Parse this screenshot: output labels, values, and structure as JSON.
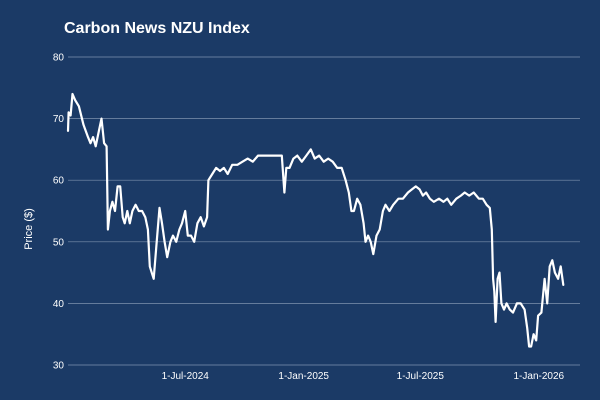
{
  "colors": {
    "background": "#1b3a66",
    "line": "#ffffff",
    "grid": "#9fb0c8",
    "text": "#ffffff"
  },
  "chart_data": {
    "type": "line",
    "title": "Carbon News NZU Index",
    "xlabel": "",
    "ylabel": "Price ($)",
    "ylim": [
      30,
      80
    ],
    "y_ticks": [
      30,
      40,
      50,
      60,
      70,
      80
    ],
    "y_tick_labels": [
      "30",
      "40",
      "50",
      "60",
      "70",
      "80"
    ],
    "x_ticks": [
      "2024-07-01",
      "2025-01-01",
      "2025-07-01",
      "2026-01-01"
    ],
    "x_tick_labels": [
      "1-Jul-2024",
      "1-Jan-2025",
      "1-Jul-2025",
      "1-Jan-2026"
    ],
    "xlim": [
      "2024-01-01",
      "2026-03-06"
    ],
    "grid": "horizontal",
    "legend": "none",
    "series": [
      {
        "name": "",
        "color": "#ffffff",
        "points": [
          [
            "2024-01-01",
            68
          ],
          [
            "2024-01-02",
            71
          ],
          [
            "2024-01-05",
            70.5
          ],
          [
            "2024-01-08",
            74
          ],
          [
            "2024-01-12",
            73
          ],
          [
            "2024-01-18",
            72
          ],
          [
            "2024-01-25",
            69
          ],
          [
            "2024-02-01",
            67
          ],
          [
            "2024-02-05",
            66
          ],
          [
            "2024-02-09",
            67
          ],
          [
            "2024-02-13",
            65.5
          ],
          [
            "2024-02-18",
            68
          ],
          [
            "2024-02-22",
            70
          ],
          [
            "2024-02-26",
            66
          ],
          [
            "2024-03-01",
            65.5
          ],
          [
            "2024-03-03",
            52
          ],
          [
            "2024-03-06",
            55
          ],
          [
            "2024-03-10",
            56.5
          ],
          [
            "2024-03-14",
            55
          ],
          [
            "2024-03-18",
            59
          ],
          [
            "2024-03-22",
            59
          ],
          [
            "2024-03-26",
            54
          ],
          [
            "2024-03-29",
            53
          ],
          [
            "2024-04-02",
            55
          ],
          [
            "2024-04-06",
            53
          ],
          [
            "2024-04-10",
            55
          ],
          [
            "2024-04-15",
            56
          ],
          [
            "2024-04-20",
            55
          ],
          [
            "2024-04-25",
            55
          ],
          [
            "2024-04-30",
            54
          ],
          [
            "2024-05-04",
            52
          ],
          [
            "2024-05-07",
            46
          ],
          [
            "2024-05-10",
            45
          ],
          [
            "2024-05-13",
            44
          ],
          [
            "2024-05-17",
            49
          ],
          [
            "2024-05-22",
            55.5
          ],
          [
            "2024-05-26",
            53
          ],
          [
            "2024-05-30",
            50
          ],
          [
            "2024-06-03",
            47.5
          ],
          [
            "2024-06-08",
            50
          ],
          [
            "2024-06-12",
            51
          ],
          [
            "2024-06-17",
            50
          ],
          [
            "2024-06-22",
            52
          ],
          [
            "2024-06-26",
            53
          ],
          [
            "2024-07-01",
            55
          ],
          [
            "2024-07-05",
            51
          ],
          [
            "2024-07-10",
            51
          ],
          [
            "2024-07-15",
            50
          ],
          [
            "2024-07-20",
            53
          ],
          [
            "2024-07-25",
            54
          ],
          [
            "2024-07-30",
            52.5
          ],
          [
            "2024-08-04",
            54
          ],
          [
            "2024-08-06",
            60
          ],
          [
            "2024-08-12",
            61
          ],
          [
            "2024-08-18",
            62
          ],
          [
            "2024-08-24",
            61.5
          ],
          [
            "2024-08-30",
            62
          ],
          [
            "2024-09-05",
            61
          ],
          [
            "2024-09-12",
            62.5
          ],
          [
            "2024-09-20",
            62.5
          ],
          [
            "2024-09-28",
            63
          ],
          [
            "2024-10-06",
            63.5
          ],
          [
            "2024-10-14",
            63
          ],
          [
            "2024-10-22",
            64
          ],
          [
            "2024-11-01",
            64
          ],
          [
            "2024-11-10",
            64
          ],
          [
            "2024-11-20",
            64
          ],
          [
            "2024-11-28",
            64
          ],
          [
            "2024-12-02",
            58
          ],
          [
            "2024-12-05",
            62
          ],
          [
            "2024-12-10",
            62
          ],
          [
            "2024-12-16",
            63.5
          ],
          [
            "2024-12-22",
            64
          ],
          [
            "2024-12-29",
            63
          ],
          [
            "2025-01-05",
            64
          ],
          [
            "2025-01-12",
            65
          ],
          [
            "2025-01-18",
            63.5
          ],
          [
            "2025-01-25",
            64
          ],
          [
            "2025-02-01",
            63
          ],
          [
            "2025-02-08",
            63.5
          ],
          [
            "2025-02-15",
            63
          ],
          [
            "2025-02-22",
            62
          ],
          [
            "2025-03-01",
            62
          ],
          [
            "2025-03-07",
            60
          ],
          [
            "2025-03-12",
            58
          ],
          [
            "2025-03-16",
            55
          ],
          [
            "2025-03-20",
            55
          ],
          [
            "2025-03-25",
            57
          ],
          [
            "2025-03-30",
            56
          ],
          [
            "2025-04-04",
            53
          ],
          [
            "2025-04-07",
            50
          ],
          [
            "2025-04-11",
            51
          ],
          [
            "2025-04-15",
            50
          ],
          [
            "2025-04-19",
            48
          ],
          [
            "2025-04-24",
            51
          ],
          [
            "2025-04-29",
            52
          ],
          [
            "2025-05-04",
            55
          ],
          [
            "2025-05-08",
            56
          ],
          [
            "2025-05-14",
            55
          ],
          [
            "2025-05-20",
            56
          ],
          [
            "2025-05-28",
            57
          ],
          [
            "2025-06-04",
            57
          ],
          [
            "2025-06-12",
            58
          ],
          [
            "2025-06-18",
            58.5
          ],
          [
            "2025-06-24",
            59
          ],
          [
            "2025-06-30",
            58.5
          ],
          [
            "2025-07-05",
            57.5
          ],
          [
            "2025-07-10",
            58
          ],
          [
            "2025-07-16",
            57
          ],
          [
            "2025-07-22",
            56.5
          ],
          [
            "2025-07-30",
            57
          ],
          [
            "2025-08-06",
            56.5
          ],
          [
            "2025-08-12",
            57
          ],
          [
            "2025-08-18",
            56
          ],
          [
            "2025-08-26",
            57
          ],
          [
            "2025-09-02",
            57.5
          ],
          [
            "2025-09-08",
            58
          ],
          [
            "2025-09-15",
            57.5
          ],
          [
            "2025-09-22",
            58
          ],
          [
            "2025-09-30",
            57
          ],
          [
            "2025-10-06",
            57
          ],
          [
            "2025-10-12",
            56
          ],
          [
            "2025-10-17",
            55.5
          ],
          [
            "2025-10-20",
            52
          ],
          [
            "2025-10-22",
            44
          ],
          [
            "2025-10-24",
            42
          ],
          [
            "2025-10-26",
            37
          ],
          [
            "2025-10-29",
            44
          ],
          [
            "2025-11-01",
            45
          ],
          [
            "2025-11-04",
            40
          ],
          [
            "2025-11-08",
            39
          ],
          [
            "2025-11-12",
            40
          ],
          [
            "2025-11-17",
            39
          ],
          [
            "2025-11-22",
            38.5
          ],
          [
            "2025-11-28",
            40
          ],
          [
            "2025-12-04",
            40
          ],
          [
            "2025-12-10",
            39
          ],
          [
            "2025-12-14",
            36
          ],
          [
            "2025-12-17",
            33
          ],
          [
            "2025-12-20",
            33
          ],
          [
            "2025-12-24",
            35
          ],
          [
            "2025-12-28",
            34
          ],
          [
            "2025-12-31",
            38
          ],
          [
            "2026-01-05",
            38.5
          ],
          [
            "2026-01-10",
            44
          ],
          [
            "2026-01-14",
            40
          ],
          [
            "2026-01-18",
            46
          ],
          [
            "2026-01-22",
            47
          ],
          [
            "2026-01-26",
            45
          ],
          [
            "2026-01-31",
            44
          ],
          [
            "2026-02-04",
            46
          ],
          [
            "2026-02-08",
            43
          ]
        ]
      }
    ]
  }
}
